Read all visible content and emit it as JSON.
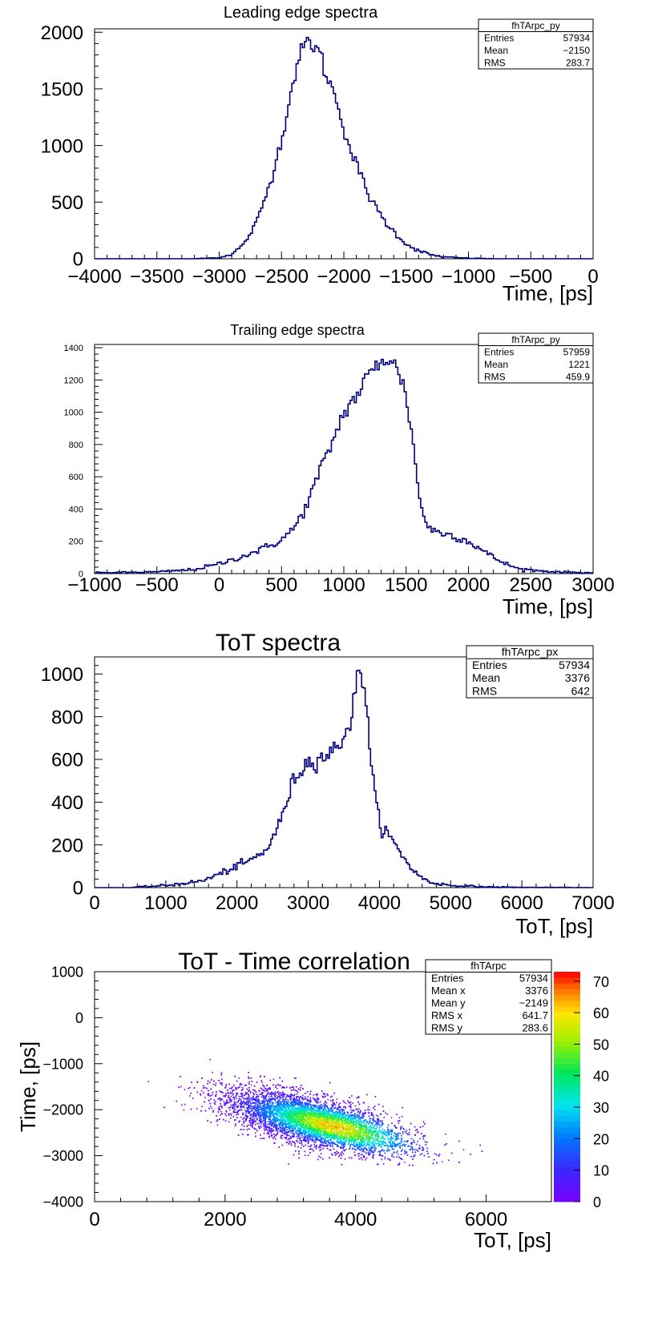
{
  "colors": {
    "line": "#00007f",
    "axis": "#000000",
    "box_bg": "#ffffff"
  },
  "panels": [
    {
      "id": "leading",
      "title": "Leading edge spectra",
      "xlabel": "Time, [ps]",
      "ylabel": "",
      "stats": {
        "name": "fhTArpc_py",
        "rows": [
          [
            "Entries",
            "57934"
          ],
          [
            "Mean",
            "−2150"
          ],
          [
            "RMS",
            "283.7"
          ]
        ]
      }
    },
    {
      "id": "trailing",
      "title": "Trailing edge spectra",
      "xlabel": "Time, [ps]",
      "ylabel": "",
      "stats": {
        "name": "fhTArpc_py",
        "rows": [
          [
            "Entries",
            "57959"
          ],
          [
            "Mean",
            "1221"
          ],
          [
            "RMS",
            "459.9"
          ]
        ]
      }
    },
    {
      "id": "tot",
      "title": "ToT spectra",
      "xlabel": "ToT, [ps]",
      "ylabel": "",
      "stats": {
        "name": "fhTArpc_px",
        "rows": [
          [
            "Entries",
            "57934"
          ],
          [
            "Mean",
            "3376"
          ],
          [
            "RMS",
            "642"
          ]
        ]
      }
    },
    {
      "id": "corr",
      "title": "ToT - Time correlation",
      "xlabel": "ToT, [ps]",
      "ylabel": "Time, [ps]",
      "stats": {
        "name": "fhTArpc",
        "rows": [
          [
            "Entries",
            "57934"
          ],
          [
            "Mean x",
            "3376"
          ],
          [
            "Mean y",
            "−2149"
          ],
          [
            "RMS x",
            "641.7"
          ],
          [
            "RMS y",
            "283.6"
          ]
        ]
      }
    }
  ],
  "chart_data": [
    {
      "type": "histogram",
      "title": "Leading edge spectra",
      "xlabel": "Time, [ps]",
      "xlim": [
        -4000,
        0
      ],
      "ylim": [
        0,
        2030
      ],
      "xticks": [
        -4000,
        -3500,
        -3000,
        -2500,
        -2000,
        -1500,
        -1000,
        -500,
        0
      ],
      "yticks": [
        0,
        500,
        1000,
        1500,
        2000
      ],
      "x": [
        -3200,
        -3000,
        -2900,
        -2800,
        -2700,
        -2600,
        -2500,
        -2450,
        -2400,
        -2350,
        -2300,
        -2260,
        -2220,
        -2180,
        -2150,
        -2100,
        -2050,
        -2000,
        -1950,
        -1900,
        -1850,
        -1800,
        -1750,
        -1700,
        -1650,
        -1600,
        -1500,
        -1400,
        -1300,
        -1200,
        -1000,
        -800
      ],
      "y": [
        0,
        10,
        40,
        130,
        320,
        640,
        1050,
        1320,
        1600,
        1800,
        1920,
        1900,
        1860,
        1780,
        1640,
        1520,
        1380,
        1150,
        960,
        840,
        700,
        560,
        460,
        380,
        300,
        240,
        130,
        70,
        35,
        15,
        5,
        0
      ]
    },
    {
      "type": "histogram",
      "title": "Trailing edge spectra",
      "xlabel": "Time, [ps]",
      "xlim": [
        -1000,
        3000
      ],
      "ylim": [
        0,
        1420
      ],
      "xticks": [
        -1000,
        -500,
        0,
        500,
        1000,
        1500,
        2000,
        2500,
        3000
      ],
      "yticks": [
        0,
        200,
        400,
        600,
        800,
        1000,
        1200,
        1400
      ],
      "x": [
        -1000,
        -500,
        -200,
        0,
        200,
        400,
        500,
        600,
        700,
        800,
        900,
        1000,
        1100,
        1200,
        1300,
        1350,
        1400,
        1450,
        1500,
        1550,
        1600,
        1650,
        1700,
        1800,
        1900,
        2000,
        2100,
        2200,
        2300,
        2400,
        2600,
        2800,
        3000
      ],
      "y": [
        5,
        10,
        25,
        60,
        110,
        170,
        210,
        280,
        420,
        620,
        800,
        1000,
        1100,
        1230,
        1320,
        1340,
        1300,
        1230,
        1100,
        850,
        500,
        330,
        270,
        250,
        230,
        200,
        150,
        100,
        60,
        30,
        15,
        8,
        5
      ]
    },
    {
      "type": "histogram",
      "title": "ToT spectra",
      "xlabel": "ToT, [ps]",
      "xlim": [
        0,
        7000
      ],
      "ylim": [
        0,
        1080
      ],
      "xticks": [
        0,
        1000,
        2000,
        3000,
        4000,
        5000,
        6000,
        7000
      ],
      "yticks": [
        0,
        200,
        400,
        600,
        800,
        1000
      ],
      "x": [
        0,
        500,
        1000,
        1500,
        1800,
        2000,
        2200,
        2400,
        2600,
        2800,
        3000,
        3200,
        3400,
        3600,
        3700,
        3750,
        3800,
        3900,
        4000,
        4100,
        4300,
        4500,
        4700,
        5000,
        5500,
        6000,
        7000
      ],
      "y": [
        0,
        0,
        10,
        30,
        70,
        100,
        130,
        170,
        300,
        510,
        590,
        610,
        650,
        780,
        1000,
        1020,
        920,
        520,
        300,
        260,
        160,
        70,
        25,
        10,
        3,
        1,
        0
      ]
    },
    {
      "type": "heatmap",
      "title": "ToT - Time correlation",
      "xlabel": "ToT, [ps]",
      "ylabel": "Time, [ps]",
      "xlim": [
        0,
        7000
      ],
      "ylim": [
        -4000,
        1000
      ],
      "xticks": [
        0,
        2000,
        4000,
        6000
      ],
      "yticks": [
        -4000,
        -3000,
        -2000,
        -1000,
        0,
        1000
      ],
      "colorbar": {
        "range": [
          0,
          73
        ],
        "ticks": [
          0,
          10,
          20,
          30,
          40,
          50,
          60,
          70
        ]
      },
      "peak": {
        "x": 3650,
        "y": -2350,
        "value": 70
      },
      "mean_x": 3376,
      "mean_y": -2149,
      "rms_x": 641.7,
      "rms_y": 283.6,
      "correlation_slope_ps_per_ps": -0.33,
      "spread": {
        "x_range": [
          500,
          6500
        ],
        "y_range": [
          -3200,
          -700
        ]
      }
    }
  ]
}
